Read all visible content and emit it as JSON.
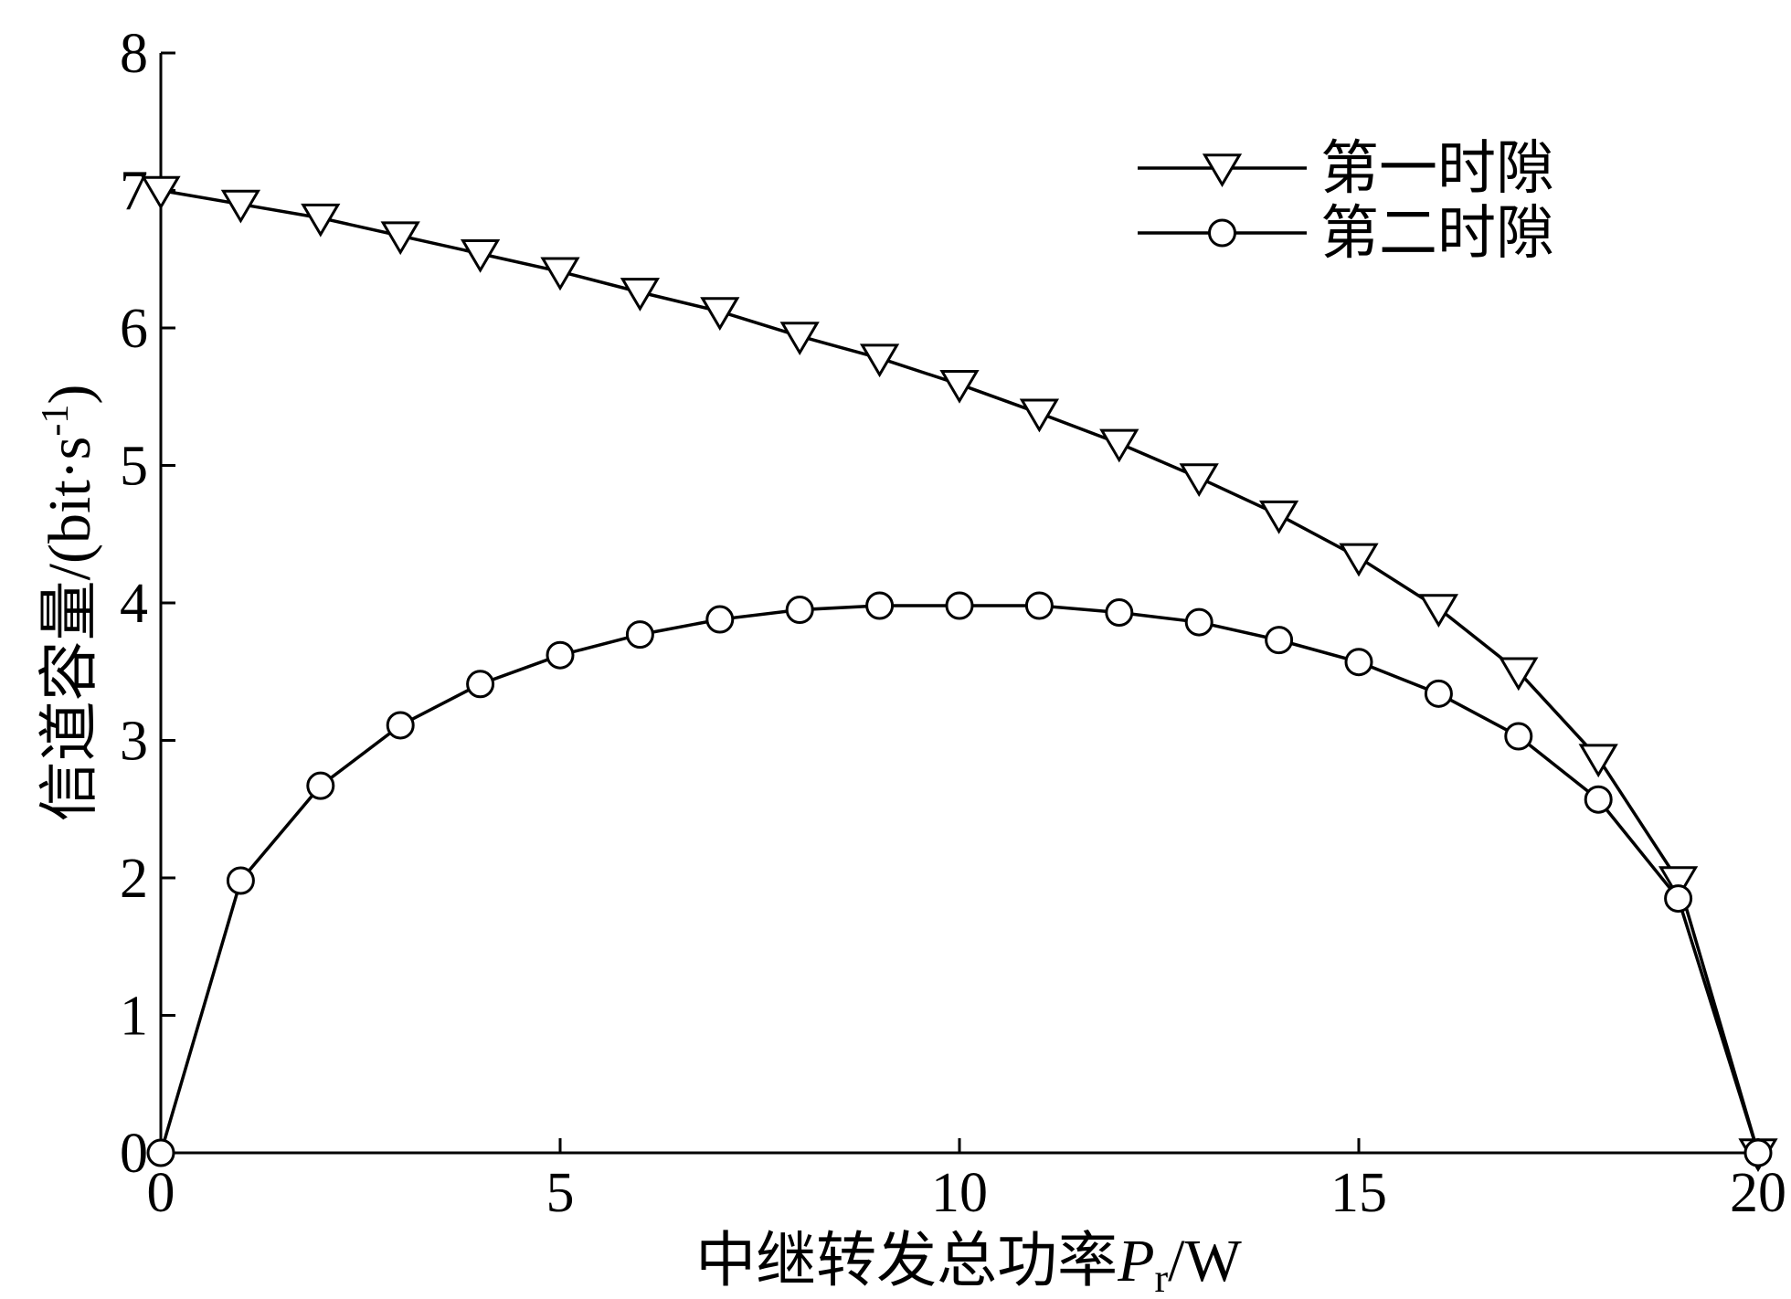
{
  "chart_data": {
    "type": "line",
    "title": "",
    "xlabel": {
      "text": "中继转发总功率",
      "symbol": "P",
      "subscript": "r",
      "unit": "/W"
    },
    "ylabel": {
      "text": "信道容量/(bit·s",
      "superscript": "-1",
      "suffix": ")"
    },
    "xlim": [
      0,
      20
    ],
    "ylim": [
      0,
      8
    ],
    "xticks": [
      0,
      5,
      10,
      15,
      20
    ],
    "yticks": [
      0,
      1,
      2,
      3,
      4,
      5,
      6,
      7,
      8
    ],
    "grid": false,
    "legend_position": "top-right",
    "x": [
      0,
      1,
      2,
      3,
      4,
      5,
      6,
      7,
      8,
      9,
      10,
      11,
      12,
      13,
      14,
      15,
      16,
      17,
      18,
      19,
      20
    ],
    "series": [
      {
        "name": "第一时隙",
        "marker": "triangle-down",
        "values": [
          7.0,
          6.9,
          6.8,
          6.67,
          6.54,
          6.41,
          6.26,
          6.12,
          5.94,
          5.78,
          5.59,
          5.38,
          5.16,
          4.91,
          4.64,
          4.33,
          3.96,
          3.5,
          2.87,
          1.98,
          0.0
        ]
      },
      {
        "name": "第二时隙",
        "marker": "circle",
        "values": [
          0.0,
          1.98,
          2.67,
          3.11,
          3.41,
          3.62,
          3.77,
          3.88,
          3.95,
          3.98,
          3.98,
          3.98,
          3.93,
          3.86,
          3.73,
          3.57,
          3.34,
          3.03,
          2.57,
          1.85,
          0.0
        ]
      }
    ],
    "colors": {
      "line": "#000000",
      "marker_fill": "#ffffff",
      "axis": "#000000"
    }
  }
}
